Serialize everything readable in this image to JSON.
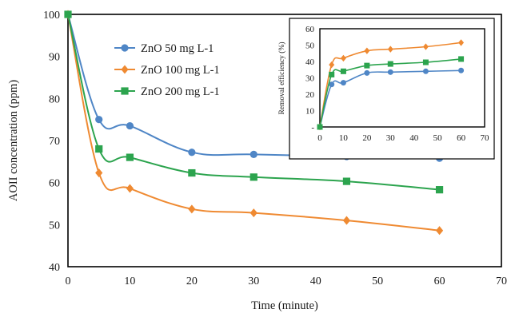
{
  "chart_data": [
    {
      "type": "line",
      "title": "",
      "xlabel": "Time (minute)",
      "ylabel": "AOII concentration (ppm)",
      "xlim": [
        0,
        70
      ],
      "ylim": [
        40,
        100
      ],
      "x_ticks": [
        "0",
        "10",
        "20",
        "30",
        "40",
        "50",
        "60",
        "70"
      ],
      "y_ticks": [
        "40",
        "50",
        "60",
        "70",
        "80",
        "90",
        "100"
      ],
      "grid": false,
      "legend_position": "top-left",
      "series": [
        {
          "name": "ZnO 50 mg L-1",
          "color": "#4f86c6",
          "marker": "circle",
          "x": [
            0,
            5,
            10,
            20,
            30,
            45,
            60
          ],
          "y": [
            100,
            75,
            73.5,
            67.2,
            66.7,
            66.2,
            65.8
          ]
        },
        {
          "name": "ZnO 100 mg L-1",
          "color": "#ef8a32",
          "marker": "diamond",
          "x": [
            0,
            5,
            10,
            20,
            30,
            45,
            60
          ],
          "y": [
            100,
            62.3,
            58.6,
            53.7,
            52.8,
            51,
            48.6
          ]
        },
        {
          "name": "ZnO 200 mg L-1",
          "color": "#2ca44e",
          "marker": "square",
          "x": [
            0,
            5,
            10,
            20,
            30,
            45,
            60
          ],
          "y": [
            100,
            68,
            66,
            62.3,
            61.3,
            60.3,
            58.3
          ]
        }
      ]
    },
    {
      "type": "line",
      "title": "",
      "xlabel": "",
      "ylabel": "Removal efficiency (%)",
      "xlim": [
        0,
        70
      ],
      "ylim": [
        0,
        60
      ],
      "x_ticks": [
        "0",
        "10",
        "20",
        "30",
        "40",
        "50",
        "60",
        "70"
      ],
      "y_ticks": [
        "-",
        "10",
        "20",
        "30",
        "40",
        "50",
        "60"
      ],
      "grid": false,
      "series": [
        {
          "color": "#4f86c6",
          "marker": "circle",
          "x": [
            0,
            5,
            10,
            20,
            30,
            45,
            60
          ],
          "y": [
            0,
            26,
            27,
            33,
            33.5,
            34,
            34.5
          ]
        },
        {
          "color": "#ef8a32",
          "marker": "diamond",
          "x": [
            0,
            5,
            10,
            20,
            30,
            45,
            60
          ],
          "y": [
            0,
            38,
            42,
            46.5,
            47.5,
            49,
            51.5
          ]
        },
        {
          "color": "#2ca44e",
          "marker": "square",
          "x": [
            0,
            5,
            10,
            20,
            30,
            45,
            60
          ],
          "y": [
            0,
            32,
            34,
            37.5,
            38.5,
            39.5,
            41.5
          ]
        }
      ]
    }
  ]
}
